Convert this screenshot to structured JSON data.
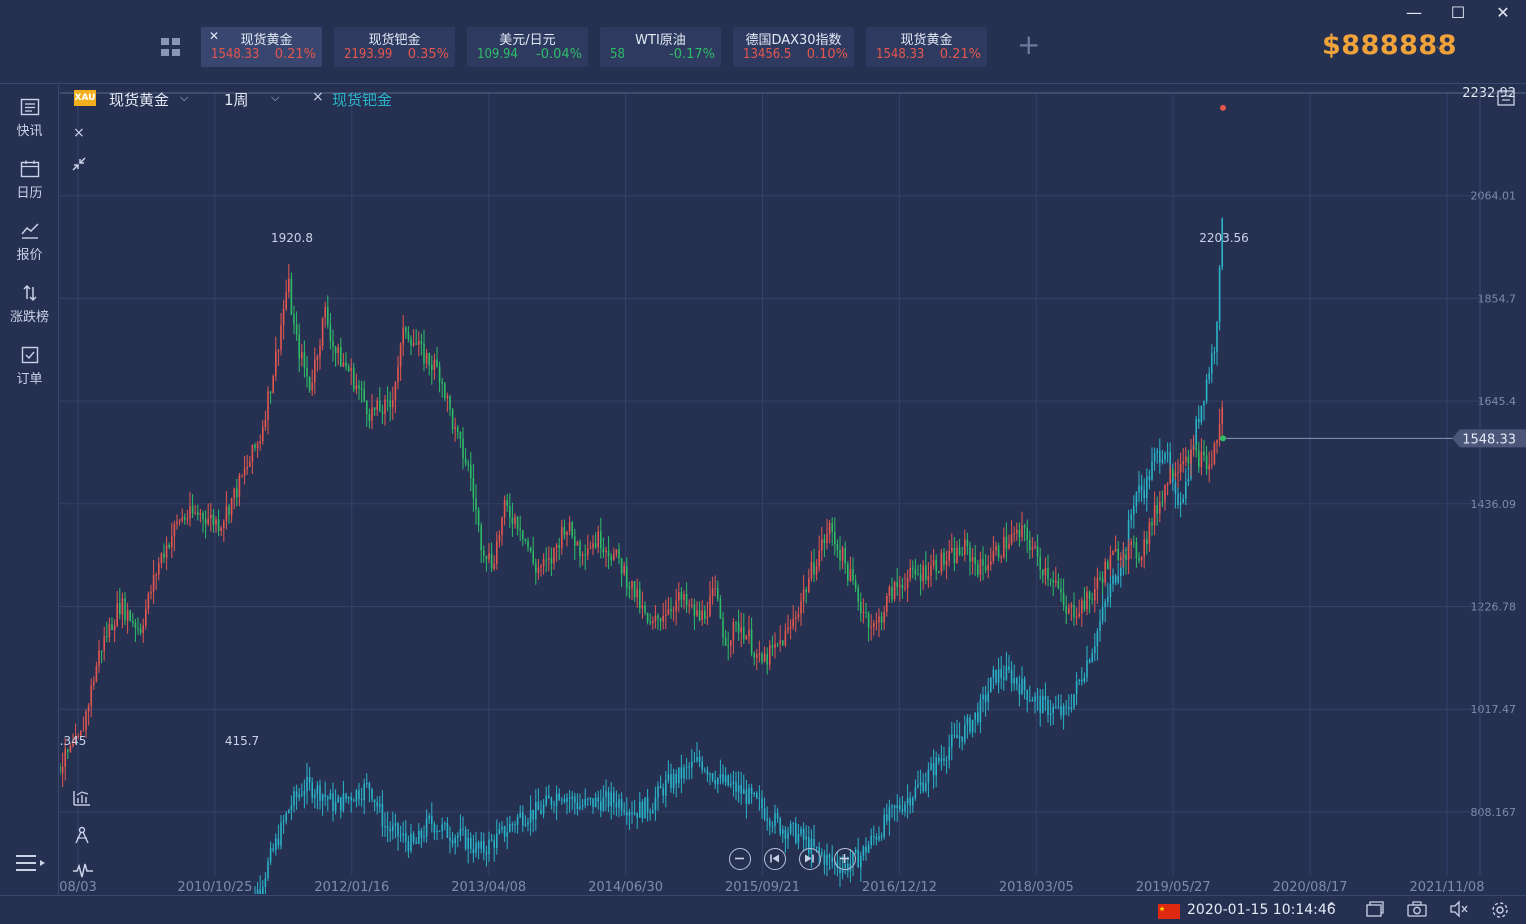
{
  "window": {
    "minimize": "—",
    "maximize": "☐",
    "close": "✕"
  },
  "tickers": [
    {
      "name": "现货黄金",
      "price": "1548.33",
      "change": "0.21%",
      "dir": "up",
      "active": true,
      "close": "✕"
    },
    {
      "name": "现货钯金",
      "price": "2193.99",
      "change": "0.35%",
      "dir": "up",
      "active": false
    },
    {
      "name": "美元/日元",
      "price": "109.94",
      "change": "-0.04%",
      "dir": "down",
      "active": false
    },
    {
      "name": "WTI原油",
      "price": "58",
      "change": "-0.17%",
      "dir": "down",
      "active": false
    },
    {
      "name": "德国DAX30指数",
      "price": "13456.5",
      "change": "0.10%",
      "dir": "up",
      "active": false
    },
    {
      "name": "现货黄金",
      "price": "1548.33",
      "change": "0.21%",
      "dir": "up",
      "active": false
    }
  ],
  "add_tab": "+",
  "balance": "$888888",
  "sidebar": [
    {
      "label": "快讯",
      "icon": "news-icon"
    },
    {
      "label": "日历",
      "icon": "calendar-icon"
    },
    {
      "label": "报价",
      "icon": "quote-icon"
    },
    {
      "label": "涨跌榜",
      "icon": "updown-icon"
    },
    {
      "label": "订单",
      "icon": "order-icon"
    }
  ],
  "chart_header": {
    "badge": "XAU",
    "symbol": "现货黄金",
    "period": "1周",
    "compare_close": "×",
    "compare_symbol": "现货钯金",
    "close": "×"
  },
  "chart_data": {
    "type": "candlestick",
    "series": [
      {
        "name": "现货黄金",
        "color_up": "#e4574e",
        "color_down": "#2ebc67",
        "high_label": "1920.8",
        "low_label": ".345",
        "last": "1548.33"
      },
      {
        "name": "现货钯金",
        "color": "#2ab3c9",
        "high_label": "2203.56",
        "low_label": "415.7"
      }
    ],
    "y_ticks": [
      "2232.92",
      "2064.01",
      "1854.7",
      "1645.4",
      "1436.09",
      "1226.78",
      "1017.47",
      "808.167"
    ],
    "y_range": [
      700,
      2232.92
    ],
    "x_ticks": [
      "08/03",
      "2010/10/25",
      "2012/01/16",
      "2013/04/08",
      "2014/06/30",
      "2015/09/21",
      "2016/12/12",
      "2018/03/05",
      "2019/05/27",
      "2020/08/17",
      "2021/11/08"
    ],
    "last_price_label": "1548.33"
  },
  "status": {
    "datetime": "2020-01-15 10:14:46",
    "caret": "^"
  }
}
